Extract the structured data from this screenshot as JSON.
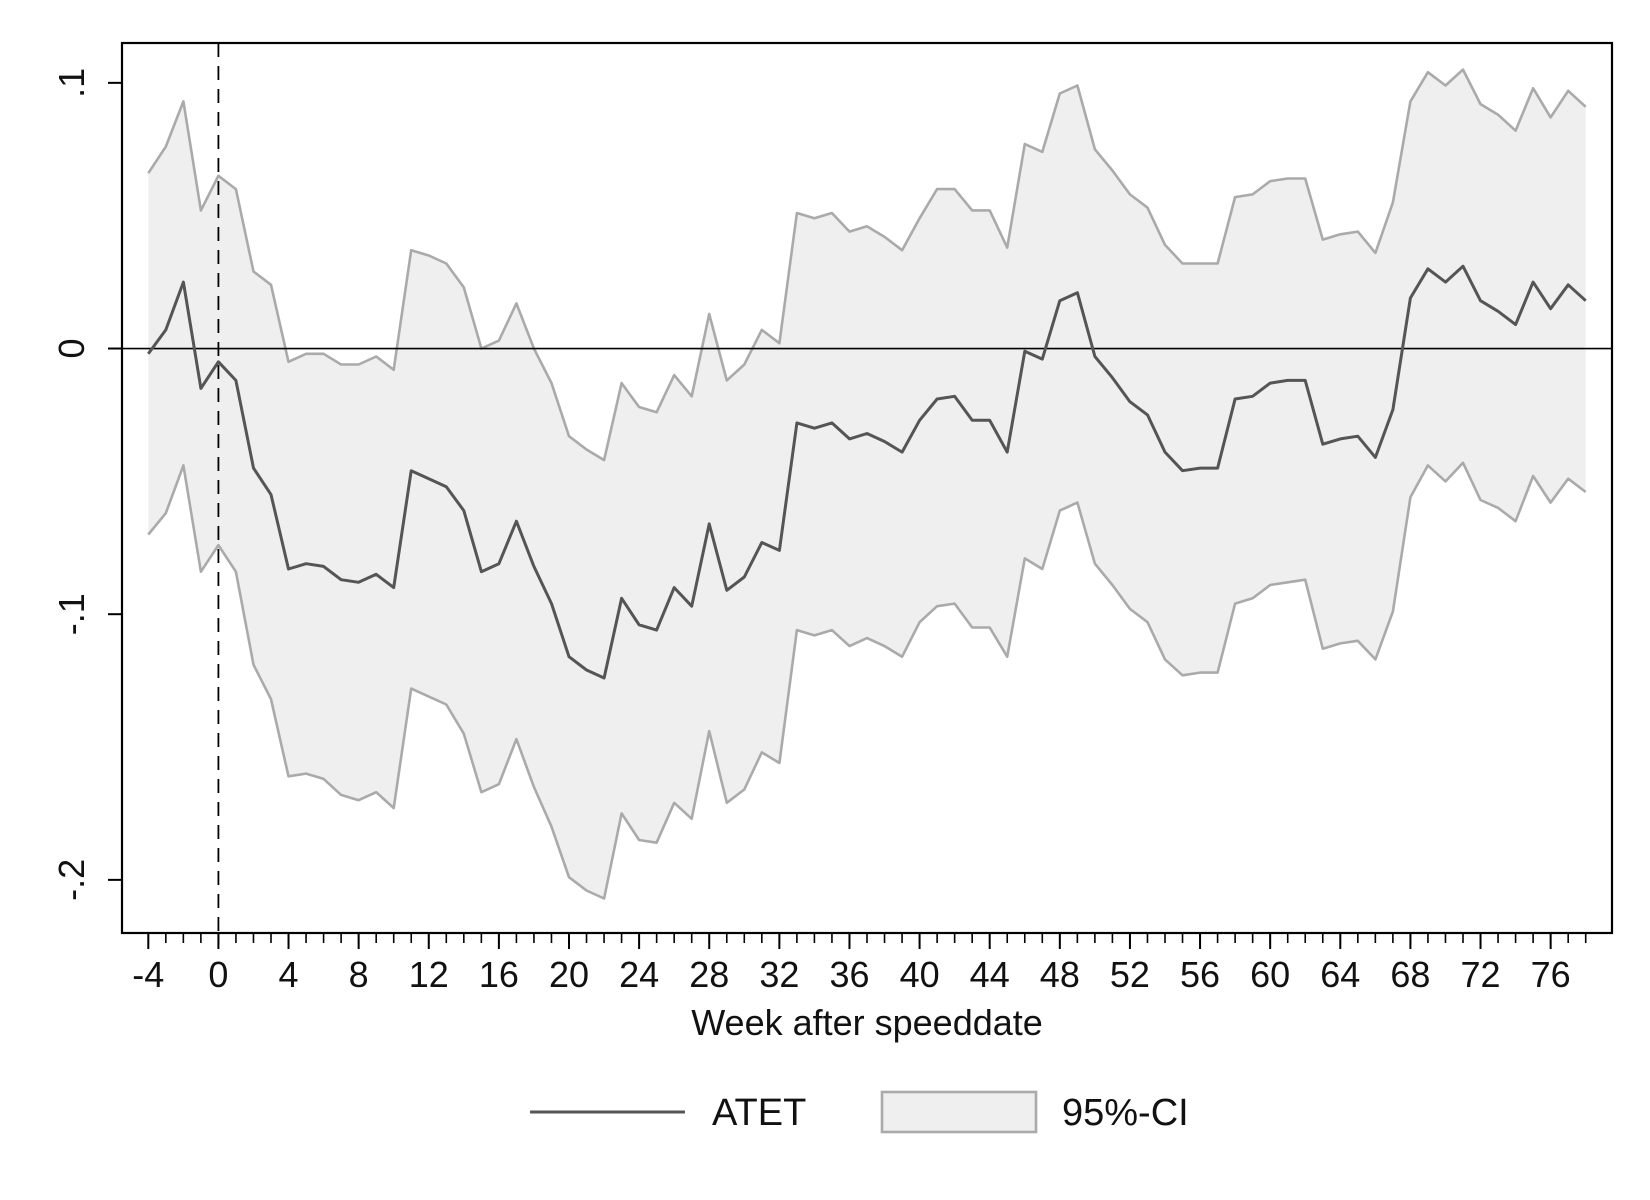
{
  "chart_data": {
    "type": "line",
    "title": "",
    "xlabel": "Week after speeddate",
    "ylabel": "",
    "xlim": [
      -5.5,
      79.5
    ],
    "ylim": [
      -0.22,
      0.115
    ],
    "x_ticks": [
      -4,
      0,
      4,
      8,
      12,
      16,
      20,
      24,
      28,
      32,
      36,
      40,
      44,
      48,
      52,
      56,
      60,
      64,
      68,
      72,
      76
    ],
    "y_ticks": [
      0.1,
      0,
      -0.1,
      -0.2
    ],
    "y_tick_labels": [
      ".1",
      "0",
      "-.1",
      "-.2"
    ],
    "reference_lines": {
      "x": 0,
      "y": 0
    },
    "grid": false,
    "legend_position": "bottom",
    "x": [
      -4,
      -3,
      -2,
      -1,
      0,
      1,
      2,
      3,
      4,
      5,
      6,
      7,
      8,
      9,
      10,
      11,
      12,
      13,
      14,
      15,
      16,
      17,
      18,
      19,
      20,
      21,
      22,
      23,
      24,
      25,
      26,
      27,
      28,
      29,
      30,
      31,
      32,
      33,
      34,
      35,
      36,
      37,
      38,
      39,
      40,
      41,
      42,
      43,
      44,
      45,
      46,
      47,
      48,
      49,
      50,
      51,
      52,
      53,
      54,
      55,
      56,
      57,
      58,
      59,
      60,
      61,
      62,
      63,
      64,
      65,
      66,
      67,
      68,
      69,
      70,
      71,
      72,
      73,
      74,
      75,
      76,
      77,
      78
    ],
    "series": [
      {
        "name": "ATET",
        "kind": "line",
        "color": "#555555",
        "values": [
          -0.002,
          0.007,
          0.025,
          -0.015,
          -0.005,
          -0.012,
          -0.045,
          -0.055,
          -0.083,
          -0.081,
          -0.082,
          -0.087,
          -0.088,
          -0.085,
          -0.09,
          -0.046,
          -0.049,
          -0.052,
          -0.061,
          -0.084,
          -0.081,
          -0.065,
          -0.082,
          -0.096,
          -0.116,
          -0.121,
          -0.124,
          -0.094,
          -0.104,
          -0.106,
          -0.09,
          -0.097,
          -0.066,
          -0.091,
          -0.086,
          -0.073,
          -0.076,
          -0.028,
          -0.03,
          -0.028,
          -0.034,
          -0.032,
          -0.035,
          -0.039,
          -0.027,
          -0.019,
          -0.018,
          -0.027,
          -0.027,
          -0.039,
          -0.001,
          -0.004,
          0.018,
          0.021,
          -0.003,
          -0.011,
          -0.02,
          -0.025,
          -0.039,
          -0.046,
          -0.045,
          -0.045,
          -0.019,
          -0.018,
          -0.013,
          -0.012,
          -0.012,
          -0.036,
          -0.034,
          -0.033,
          -0.041,
          -0.023,
          0.019,
          0.03,
          0.025,
          0.031,
          0.018,
          0.014,
          0.009,
          0.025,
          0.015,
          0.024,
          0.018
        ]
      },
      {
        "name": "95%-CI",
        "kind": "band",
        "fill": "#efefef",
        "stroke": "#aaaaaa",
        "upper": [
          0.066,
          0.076,
          0.093,
          0.052,
          0.065,
          0.06,
          0.029,
          0.024,
          -0.005,
          -0.002,
          -0.002,
          -0.006,
          -0.006,
          -0.003,
          -0.008,
          0.037,
          0.035,
          0.032,
          0.023,
          0.0,
          0.003,
          0.017,
          0.0,
          -0.013,
          -0.033,
          -0.038,
          -0.042,
          -0.013,
          -0.022,
          -0.024,
          -0.01,
          -0.018,
          0.013,
          -0.012,
          -0.006,
          0.007,
          0.002,
          0.051,
          0.049,
          0.051,
          0.044,
          0.046,
          0.042,
          0.037,
          0.049,
          0.06,
          0.06,
          0.052,
          0.052,
          0.038,
          0.077,
          0.074,
          0.096,
          0.099,
          0.075,
          0.067,
          0.058,
          0.053,
          0.039,
          0.032,
          0.032,
          0.032,
          0.057,
          0.058,
          0.063,
          0.064,
          0.064,
          0.041,
          0.043,
          0.044,
          0.036,
          0.055,
          0.093,
          0.104,
          0.099,
          0.105,
          0.092,
          0.088,
          0.082,
          0.098,
          0.087,
          0.097,
          0.091
        ],
        "lower": [
          -0.07,
          -0.062,
          -0.044,
          -0.084,
          -0.074,
          -0.084,
          -0.119,
          -0.132,
          -0.161,
          -0.16,
          -0.162,
          -0.168,
          -0.17,
          -0.167,
          -0.173,
          -0.128,
          -0.131,
          -0.134,
          -0.145,
          -0.167,
          -0.164,
          -0.147,
          -0.165,
          -0.18,
          -0.199,
          -0.204,
          -0.207,
          -0.175,
          -0.185,
          -0.186,
          -0.171,
          -0.177,
          -0.144,
          -0.171,
          -0.166,
          -0.152,
          -0.156,
          -0.106,
          -0.108,
          -0.106,
          -0.112,
          -0.109,
          -0.112,
          -0.116,
          -0.103,
          -0.097,
          -0.096,
          -0.105,
          -0.105,
          -0.116,
          -0.079,
          -0.083,
          -0.061,
          -0.058,
          -0.081,
          -0.089,
          -0.098,
          -0.103,
          -0.117,
          -0.123,
          -0.122,
          -0.122,
          -0.096,
          -0.094,
          -0.089,
          -0.088,
          -0.087,
          -0.113,
          -0.111,
          -0.11,
          -0.117,
          -0.099,
          -0.056,
          -0.044,
          -0.05,
          -0.043,
          -0.057,
          -0.06,
          -0.065,
          -0.048,
          -0.058,
          -0.049,
          -0.054
        ]
      }
    ],
    "legend": [
      {
        "label": "ATET",
        "kind": "line"
      },
      {
        "label": "95%-CI",
        "kind": "band"
      }
    ]
  }
}
